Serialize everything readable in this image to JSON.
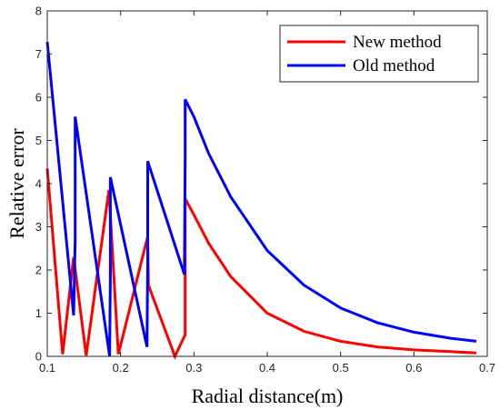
{
  "chart_data": {
    "type": "line",
    "xlabel": "Radial distance(m)",
    "ylabel": "Relative error",
    "xlim": [
      0.1,
      0.7
    ],
    "ylim": [
      0,
      8
    ],
    "xticks": [
      "0.1",
      "0.2",
      "0.3",
      "0.4",
      "0.5",
      "0.6",
      "0.7"
    ],
    "yticks": [
      "0",
      "1",
      "2",
      "3",
      "4",
      "5",
      "6",
      "7",
      "8"
    ],
    "grid": false,
    "legend_position": "top-right",
    "series": [
      {
        "name": "New method",
        "color": "#ff0000",
        "x": [
          0.1,
          0.121,
          0.136,
          0.153,
          0.184,
          0.197,
          0.237,
          0.238,
          0.274,
          0.288,
          0.288,
          0.3,
          0.32,
          0.35,
          0.4,
          0.45,
          0.5,
          0.55,
          0.6,
          0.65,
          0.685
        ],
        "y": [
          4.35,
          0.05,
          2.3,
          0.02,
          3.85,
          0.05,
          2.78,
          1.65,
          0.0,
          0.5,
          3.65,
          3.28,
          2.62,
          1.85,
          1.0,
          0.58,
          0.35,
          0.22,
          0.15,
          0.11,
          0.08
        ]
      },
      {
        "name": "Old method",
        "color": "#0000ff",
        "x": [
          0.1,
          0.136,
          0.138,
          0.138,
          0.185,
          0.186,
          0.186,
          0.236,
          0.237,
          0.237,
          0.287,
          0.288,
          0.288,
          0.3,
          0.32,
          0.35,
          0.4,
          0.45,
          0.5,
          0.55,
          0.6,
          0.65,
          0.685
        ],
        "y": [
          7.28,
          0.95,
          2.7,
          5.55,
          0.0,
          1.9,
          4.15,
          0.22,
          2.2,
          4.52,
          1.9,
          4.6,
          5.95,
          5.55,
          4.7,
          3.7,
          2.45,
          1.65,
          1.12,
          0.78,
          0.56,
          0.42,
          0.35
        ]
      }
    ]
  }
}
